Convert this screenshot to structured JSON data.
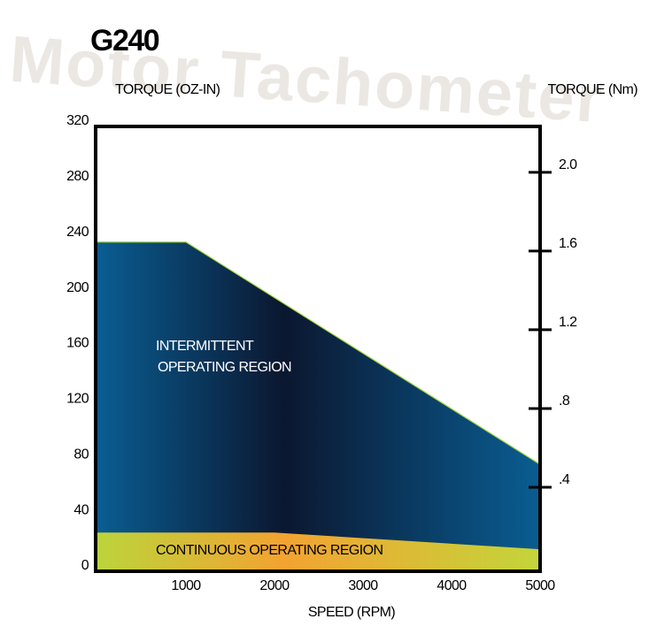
{
  "chart_data": {
    "type": "area",
    "title": "G240",
    "watermark": "Motor Tachometer",
    "y_label": "TORQUE (OZ-IN)",
    "y2_label": "TORQUE (Nm)",
    "x_label": "SPEED (RPM)",
    "x": [
      0,
      1000,
      2000,
      5000
    ],
    "xlim": [
      0,
      5000
    ],
    "xticks": [
      1000,
      2000,
      3000,
      4000,
      5000
    ],
    "ylim": [
      0,
      320
    ],
    "yticks": [
      0,
      40,
      80,
      120,
      160,
      200,
      240,
      280,
      320
    ],
    "y2lim": [
      0,
      2.26
    ],
    "y2ticks": [
      {
        "value": 0.4,
        "label": ".4"
      },
      {
        "value": 0.8,
        "label": ".8"
      },
      {
        "value": 1.2,
        "label": "1.2"
      },
      {
        "value": 1.6,
        "label": "1.6"
      },
      {
        "value": 2,
        "label": "2.0"
      }
    ],
    "series": [
      {
        "label_lines": [
          "INTERMITTENT",
          "OPERATING REGION"
        ],
        "colors": [
          "#0a5d92",
          "#0b1730",
          "#0a5d92"
        ],
        "values": [
          233,
          233,
          193,
          73
        ]
      },
      {
        "label_lines": [
          "CONTINUOUS  OPERATING REGION"
        ],
        "colors": [
          "#bcd43c",
          "#f3a331",
          "#c3d53a"
        ],
        "values": [
          24,
          24,
          24,
          12
        ]
      }
    ]
  }
}
